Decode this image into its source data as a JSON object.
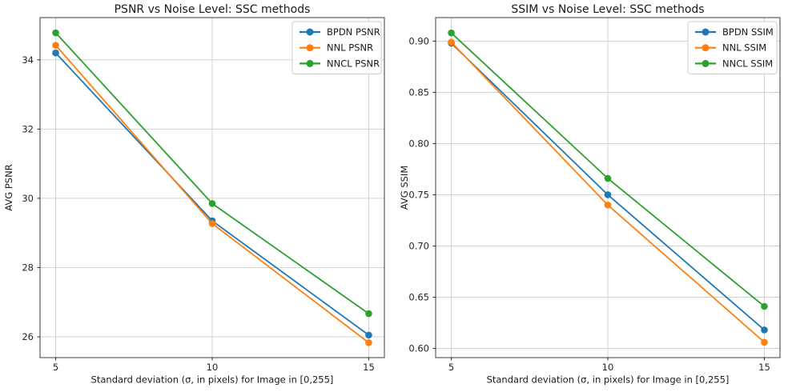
{
  "figure": {
    "colors": {
      "background": "#ffffff",
      "grid": "#d0d0d0",
      "axis": "#3c3c3c",
      "tick": "#262626",
      "text": "#1a1a1a",
      "legend_border": "#cccccc",
      "legend_fill": "#ffffff",
      "series_blue": "#1f77b4",
      "series_orange": "#ff7f0e",
      "series_green": "#2ca02c"
    }
  },
  "chart_data": [
    {
      "type": "line",
      "title": "PSNR vs Noise Level: SSC methods",
      "xlabel": "Standard deviation (σ, in pixels) for Image in [0,255]",
      "ylabel": "AVG PSNR",
      "x": [
        5,
        10,
        15
      ],
      "xticks": [
        5,
        10,
        15
      ],
      "yticks": [
        26,
        28,
        30,
        32,
        34
      ],
      "ytick_decimals": 0,
      "xlim": [
        4.5,
        15.5
      ],
      "ylim": [
        25.4,
        35.22
      ],
      "grid": true,
      "legend_position": "upper right",
      "marker": "circle",
      "series": [
        {
          "name": "BPDN PSNR",
          "color": "#1f77b4",
          "values": [
            34.2,
            29.35,
            26.05
          ]
        },
        {
          "name": "NNL PSNR",
          "color": "#ff7f0e",
          "values": [
            34.42,
            29.27,
            25.83
          ]
        },
        {
          "name": "NNCL PSNR",
          "color": "#2ca02c",
          "values": [
            34.78,
            29.85,
            26.67
          ]
        }
      ]
    },
    {
      "type": "line",
      "title": "SSIM vs Noise Level: SSC methods",
      "xlabel": "Standard deviation (σ, in pixels) for Image in [0,255]",
      "ylabel": "AVG SSIM",
      "x": [
        5,
        10,
        15
      ],
      "xticks": [
        5,
        10,
        15
      ],
      "yticks": [
        0.6,
        0.65,
        0.7,
        0.75,
        0.8,
        0.85,
        0.9
      ],
      "ytick_decimals": 2,
      "xlim": [
        4.5,
        15.5
      ],
      "ylim": [
        0.591,
        0.923
      ],
      "grid": true,
      "legend_position": "upper right",
      "marker": "circle",
      "series": [
        {
          "name": "BPDN SSIM",
          "color": "#1f77b4",
          "values": [
            0.898,
            0.75,
            0.618
          ]
        },
        {
          "name": "NNL SSIM",
          "color": "#ff7f0e",
          "values": [
            0.899,
            0.74,
            0.606
          ]
        },
        {
          "name": "NNCL SSIM",
          "color": "#2ca02c",
          "values": [
            0.908,
            0.766,
            0.641
          ]
        }
      ]
    }
  ]
}
